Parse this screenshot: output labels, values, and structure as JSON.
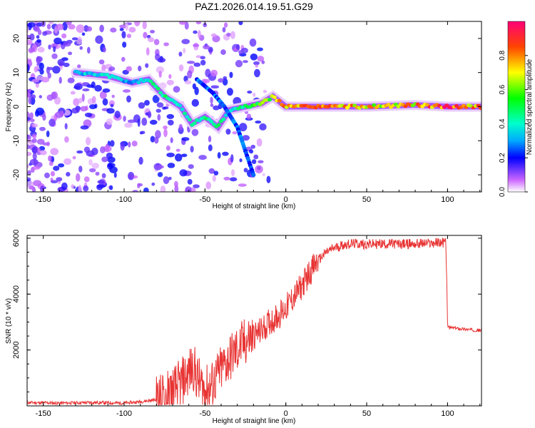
{
  "title": "PAZ1.2026.014.19.51.G29",
  "chart_data": [
    {
      "type": "heatmap",
      "name": "spectrogram",
      "xlabel": "Height of straight line (km)",
      "ylabel": "Frequency (Hz)",
      "xlim": [
        -160,
        121
      ],
      "ylim": [
        -25,
        25
      ],
      "xticks": [
        -150,
        -100,
        -50,
        0,
        50,
        100
      ],
      "xtick_labels": [
        "-150",
        "-100",
        "-50",
        "0",
        "50",
        "100"
      ],
      "yticks": [
        20,
        10,
        0,
        -10,
        -20
      ],
      "ytick_labels": [
        "20",
        "10",
        "0",
        "-10",
        "-20"
      ],
      "colorbar": {
        "label": "Normalized spectral amplitude",
        "range": [
          0,
          1
        ],
        "ticks": [
          0.0,
          0.2,
          0.4,
          0.6,
          0.8
        ],
        "tick_labels": [
          "0.0",
          "0.2",
          "0.4",
          "0.6",
          "0.8"
        ]
      },
      "ridge": {
        "description_points_height_km": [
          -130,
          -110,
          -95,
          -85,
          -75,
          -65,
          -58,
          -50,
          -42,
          -35,
          -25,
          -15,
          -8,
          0,
          20,
          50,
          80,
          100,
          121
        ],
        "frequency_hz": [
          10,
          9,
          7,
          8,
          3,
          0,
          -5,
          -3,
          -6,
          -1,
          0,
          1,
          3,
          0,
          0,
          0,
          0.5,
          0,
          0
        ],
        "amplitude": [
          0.35,
          0.4,
          0.3,
          0.45,
          0.5,
          0.45,
          0.5,
          0.45,
          0.5,
          0.4,
          0.5,
          0.6,
          0.7,
          0.8,
          0.9,
          0.75,
          0.8,
          0.95,
          0.8
        ]
      },
      "secondary_branch": {
        "height_km": [
          -55,
          -45,
          -38,
          -30,
          -25,
          -20
        ],
        "frequency_hz": [
          8,
          4,
          0,
          -6,
          -13,
          -20
        ]
      }
    },
    {
      "type": "line",
      "name": "snr",
      "xlabel": "Height of straight line (km)",
      "ylabel": "SNR (10 * v/v)",
      "xlim": [
        -160,
        121
      ],
      "ylim": [
        0,
        6100
      ],
      "xticks": [
        -150,
        -100,
        -50,
        0,
        50,
        100
      ],
      "xtick_labels": [
        "-150",
        "-100",
        "-50",
        "0",
        "50",
        "100"
      ],
      "yticks": [
        2000,
        4000,
        6000
      ],
      "ytick_labels": [
        "2000",
        "4000",
        "6000"
      ],
      "series": [
        {
          "name": "SNR",
          "color": "#e83333",
          "x": [
            -160,
            -140,
            -120,
            -100,
            -90,
            -80,
            -75,
            -70,
            -65,
            -60,
            -57,
            -55,
            -52,
            -50,
            -47,
            -45,
            -42,
            -40,
            -35,
            -30,
            -25,
            -20,
            -15,
            -10,
            -5,
            0,
            5,
            10,
            15,
            20,
            25,
            30,
            35,
            40,
            45,
            50,
            60,
            70,
            80,
            90,
            95,
            99,
            100,
            101,
            105,
            110,
            115,
            121
          ],
          "y": [
            120,
            100,
            120,
            100,
            150,
            220,
            350,
            550,
            800,
            1200,
            1400,
            1000,
            700,
            550,
            650,
            800,
            1100,
            1300,
            1700,
            2000,
            2300,
            2500,
            2700,
            3000,
            3200,
            3500,
            3900,
            4300,
            4800,
            5200,
            5500,
            5650,
            5750,
            5800,
            5800,
            5780,
            5800,
            5790,
            5800,
            5820,
            5850,
            5850,
            2900,
            2800,
            2780,
            2750,
            2720,
            2700
          ]
        }
      ]
    }
  ]
}
